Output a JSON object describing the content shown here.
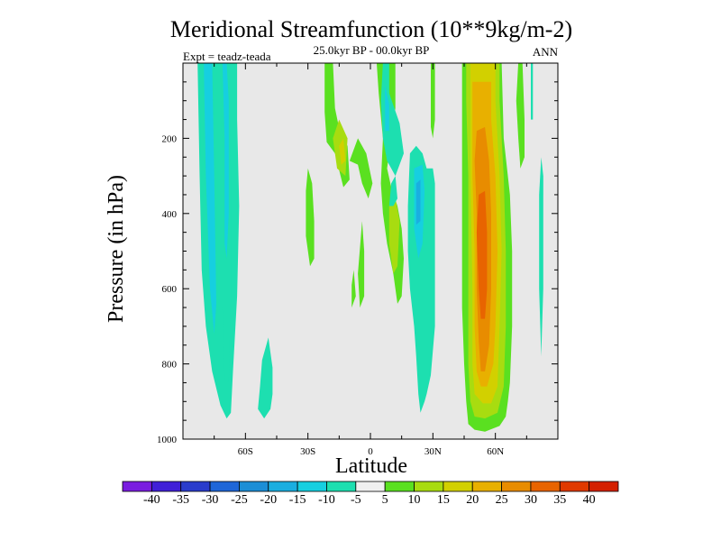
{
  "chart_data": {
    "type": "heatmap",
    "subtype": "filled-contour",
    "title": "Meridional Streamfunction (10**9kg/m-2)",
    "subtitle_center": "25.0kyr BP - 00.0kyr BP",
    "subtitle_left": "Expt = teadz-teada",
    "subtitle_right": "ANN",
    "xlabel": "Latitude",
    "ylabel": "Pressure (in hPa)",
    "xlim": [
      -90,
      90
    ],
    "ylim": [
      1000,
      0
    ],
    "x_ticks": [
      {
        "value": -60,
        "label": "60S"
      },
      {
        "value": -30,
        "label": "30S"
      },
      {
        "value": 0,
        "label": "0"
      },
      {
        "value": 30,
        "label": "30N"
      },
      {
        "value": 60,
        "label": "60N"
      }
    ],
    "y_ticks": [
      {
        "value": 200,
        "label": "200"
      },
      {
        "value": 400,
        "label": "400"
      },
      {
        "value": 600,
        "label": "600"
      },
      {
        "value": 800,
        "label": "800"
      },
      {
        "value": 1000,
        "label": "1000"
      }
    ],
    "colorbar": {
      "levels": [
        "-40",
        "-35",
        "-30",
        "-25",
        "-20",
        "-15",
        "-10",
        "-5",
        "5",
        "10",
        "15",
        "20",
        "25",
        "30",
        "35",
        "40"
      ],
      "colors": [
        "#7a1de0",
        "#4020d8",
        "#2a3ccc",
        "#1e66d8",
        "#1c8ed6",
        "#1aaee0",
        "#16cfe0",
        "#1ddfb0",
        "#f0f0f0",
        "#5ae020",
        "#a8dc10",
        "#d2d000",
        "#e8b000",
        "#e88c00",
        "#e86400",
        "#e03a00",
        "#d42000"
      ]
    },
    "background_color": "#e8e8e8",
    "regions": [
      {
        "color": "#1ddfb0",
        "pts": [
          [
            -83,
            -2
          ],
          [
            -82,
            300
          ],
          [
            -81,
            550
          ],
          [
            -79,
            700
          ],
          [
            -76,
            820
          ],
          [
            -72,
            910
          ],
          [
            -69,
            945
          ],
          [
            -67,
            930
          ],
          [
            -66,
            820
          ],
          [
            -64,
            620
          ],
          [
            -63,
            380
          ],
          [
            -64,
            150
          ],
          [
            -64,
            -2
          ]
        ]
      },
      {
        "color": "#16cfe0",
        "pts": [
          [
            -80,
            -2
          ],
          [
            -79,
            300
          ],
          [
            -77,
            600
          ],
          [
            -75,
            720
          ],
          [
            -74,
            640
          ],
          [
            -75,
            300
          ],
          [
            -76,
            -2
          ]
        ]
      },
      {
        "color": "#1ddfb0",
        "pts": [
          [
            -72,
            -2
          ],
          [
            -71,
            300
          ],
          [
            -71,
            650
          ],
          [
            -70,
            840
          ],
          [
            -68,
            850
          ],
          [
            -67,
            620
          ],
          [
            -67,
            300
          ],
          [
            -68,
            -2
          ]
        ]
      },
      {
        "color": "#16cfe0",
        "pts": [
          [
            -71,
            -2
          ],
          [
            -70,
            200
          ],
          [
            -70,
            480
          ],
          [
            -69,
            520
          ],
          [
            -68,
            400
          ],
          [
            -68,
            100
          ],
          [
            -69,
            -2
          ]
        ]
      },
      {
        "color": "#1ddfb0",
        "pts": [
          [
            -54,
            920
          ],
          [
            -53,
            860
          ],
          [
            -52,
            790
          ],
          [
            -49,
            730
          ],
          [
            -47,
            810
          ],
          [
            -47,
            880
          ],
          [
            -48,
            920
          ],
          [
            -51,
            945
          ]
        ]
      },
      {
        "color": "#5ae020",
        "pts": [
          [
            -30,
            280
          ],
          [
            -28,
            320
          ],
          [
            -27,
            420
          ],
          [
            -27,
            520
          ],
          [
            -29,
            540
          ],
          [
            -31,
            460
          ],
          [
            -31,
            340
          ]
        ]
      },
      {
        "color": "#5ae020",
        "pts": [
          [
            -22,
            -2
          ],
          [
            -18,
            -2
          ],
          [
            -17,
            120
          ],
          [
            -14,
            200
          ],
          [
            -11,
            220
          ],
          [
            -10,
            310
          ],
          [
            -13,
            330
          ],
          [
            -17,
            240
          ],
          [
            -21,
            210
          ],
          [
            -22,
            130
          ]
        ]
      },
      {
        "color": "#a8dc10",
        "pts": [
          [
            -18,
            200
          ],
          [
            -15,
            150
          ],
          [
            -11,
            200
          ],
          [
            -12,
            300
          ],
          [
            -16,
            280
          ]
        ]
      },
      {
        "color": "#d2d000",
        "pts": [
          [
            -15,
            220
          ],
          [
            -13,
            200
          ],
          [
            -12,
            260
          ],
          [
            -14,
            270
          ]
        ]
      },
      {
        "color": "#5ae020",
        "pts": [
          [
            -4,
            420
          ],
          [
            -3,
            500
          ],
          [
            -3,
            620
          ],
          [
            -5,
            650
          ],
          [
            -6,
            560
          ]
        ]
      },
      {
        "color": "#5ae020",
        "pts": [
          [
            -8,
            550
          ],
          [
            -7,
            620
          ],
          [
            -9,
            650
          ],
          [
            -9,
            590
          ]
        ]
      },
      {
        "color": "#5ae020",
        "pts": [
          [
            -10,
            260
          ],
          [
            -6,
            200
          ],
          [
            -2,
            240
          ],
          [
            1,
            320
          ],
          [
            -1,
            360
          ],
          [
            -4,
            320
          ],
          [
            -6,
            270
          ]
        ]
      },
      {
        "color": "#5ae020",
        "pts": [
          [
            3,
            -2
          ],
          [
            12,
            -2
          ],
          [
            12,
            120
          ],
          [
            10,
            200
          ],
          [
            8,
            280
          ],
          [
            10,
            330
          ],
          [
            13,
            380
          ],
          [
            15,
            440
          ],
          [
            16,
            520
          ],
          [
            15,
            620
          ],
          [
            13,
            640
          ],
          [
            11,
            560
          ],
          [
            8,
            480
          ],
          [
            6,
            400
          ],
          [
            5,
            320
          ],
          [
            6,
            200
          ],
          [
            4,
            80
          ]
        ]
      },
      {
        "color": "#1ddfb0",
        "pts": [
          [
            6,
            -2
          ],
          [
            9,
            -2
          ],
          [
            9,
            80
          ],
          [
            14,
            160
          ],
          [
            16,
            240
          ],
          [
            12,
            300
          ],
          [
            8,
            260
          ],
          [
            6,
            200
          ],
          [
            5,
            100
          ]
        ]
      },
      {
        "color": "#16cfe0",
        "pts": [
          [
            7,
            60
          ],
          [
            9,
            110
          ],
          [
            9,
            180
          ],
          [
            7,
            180
          ]
        ]
      },
      {
        "color": "#a8dc10",
        "pts": [
          [
            9,
            380
          ],
          [
            12,
            360
          ],
          [
            14,
            420
          ],
          [
            13,
            540
          ],
          [
            11,
            560
          ],
          [
            9,
            480
          ]
        ]
      },
      {
        "color": "#1ddfb0",
        "pts": [
          [
            9,
            380
          ],
          [
            10,
            320
          ],
          [
            12,
            300
          ],
          [
            13,
            360
          ],
          [
            11,
            380
          ]
        ]
      },
      {
        "color": "#5ae020",
        "pts": [
          [
            29,
            -2
          ],
          [
            31,
            -2
          ],
          [
            31,
            150
          ],
          [
            30,
            200
          ],
          [
            29,
            170
          ]
        ]
      },
      {
        "color": "#1ddfb0",
        "pts": [
          [
            19,
            240
          ],
          [
            22,
            220
          ],
          [
            25,
            240
          ],
          [
            27,
            280
          ],
          [
            30,
            280
          ],
          [
            31,
            320
          ],
          [
            31,
            500
          ],
          [
            31,
            700
          ],
          [
            29,
            830
          ],
          [
            27,
            880
          ],
          [
            26,
            900
          ],
          [
            24,
            930
          ],
          [
            23,
            880
          ],
          [
            22,
            780
          ],
          [
            21,
            700
          ],
          [
            19,
            600
          ],
          [
            18,
            500
          ],
          [
            18,
            380
          ]
        ]
      },
      {
        "color": "#16cfe0",
        "pts": [
          [
            21,
            280
          ],
          [
            25,
            270
          ],
          [
            26,
            340
          ],
          [
            25,
            480
          ],
          [
            23,
            520
          ],
          [
            21,
            440
          ]
        ]
      },
      {
        "color": "#1aaee0",
        "pts": [
          [
            22,
            320
          ],
          [
            24,
            310
          ],
          [
            24,
            420
          ],
          [
            22,
            430
          ]
        ]
      },
      {
        "color": "#5ae020",
        "pts": [
          [
            44,
            -2
          ],
          [
            63,
            -2
          ],
          [
            64,
            200
          ],
          [
            67,
            350
          ],
          [
            68,
            500
          ],
          [
            68,
            700
          ],
          [
            67,
            850
          ],
          [
            66,
            900
          ],
          [
            65,
            940
          ],
          [
            62,
            965
          ],
          [
            55,
            980
          ],
          [
            50,
            975
          ],
          [
            47,
            960
          ],
          [
            46,
            900
          ],
          [
            45,
            800
          ],
          [
            44,
            650
          ],
          [
            44,
            400
          ],
          [
            44,
            150
          ]
        ]
      },
      {
        "color": "#a8dc10",
        "pts": [
          [
            46,
            -2
          ],
          [
            62,
            -2
          ],
          [
            62,
            100
          ],
          [
            64,
            300
          ],
          [
            65,
            500
          ],
          [
            65,
            700
          ],
          [
            64,
            860
          ],
          [
            61,
            930
          ],
          [
            55,
            945
          ],
          [
            50,
            940
          ],
          [
            48,
            900
          ],
          [
            47,
            800
          ],
          [
            47,
            600
          ],
          [
            47,
            300
          ],
          [
            46,
            100
          ]
        ]
      },
      {
        "color": "#d2d000",
        "pts": [
          [
            48,
            -2
          ],
          [
            60,
            -2
          ],
          [
            60,
            100
          ],
          [
            62,
            300
          ],
          [
            63,
            500
          ],
          [
            62,
            700
          ],
          [
            61,
            860
          ],
          [
            58,
            905
          ],
          [
            54,
            905
          ],
          [
            50,
            880
          ],
          [
            49,
            800
          ],
          [
            49,
            600
          ],
          [
            48,
            300
          ]
        ]
      },
      {
        "color": "#e8b000",
        "pts": [
          [
            49,
            50
          ],
          [
            58,
            50
          ],
          [
            58,
            150
          ],
          [
            60,
            300
          ],
          [
            61,
            500
          ],
          [
            60,
            700
          ],
          [
            59,
            800
          ],
          [
            56,
            860
          ],
          [
            53,
            860
          ],
          [
            51,
            820
          ],
          [
            50,
            700
          ],
          [
            50,
            500
          ],
          [
            49,
            300
          ]
        ]
      },
      {
        "color": "#e88c00",
        "pts": [
          [
            51,
            180
          ],
          [
            55,
            170
          ],
          [
            57,
            260
          ],
          [
            58,
            400
          ],
          [
            58,
            600
          ],
          [
            57,
            750
          ],
          [
            55,
            820
          ],
          [
            53,
            820
          ],
          [
            52,
            740
          ],
          [
            51,
            600
          ],
          [
            51,
            400
          ],
          [
            50,
            260
          ]
        ]
      },
      {
        "color": "#e86400",
        "pts": [
          [
            52,
            350
          ],
          [
            55,
            340
          ],
          [
            56,
            450
          ],
          [
            56,
            600
          ],
          [
            55,
            680
          ],
          [
            53,
            680
          ],
          [
            52,
            600
          ],
          [
            51,
            450
          ]
        ]
      },
      {
        "color": "#5ae020",
        "pts": [
          [
            71,
            -2
          ],
          [
            73,
            -2
          ],
          [
            74,
            150
          ],
          [
            74,
            250
          ],
          [
            72,
            280
          ],
          [
            71,
            200
          ],
          [
            70,
            100
          ]
        ]
      },
      {
        "color": "#1ddfb0",
        "pts": [
          [
            77,
            -2
          ],
          [
            78,
            -2
          ],
          [
            78,
            150
          ],
          [
            77,
            150
          ]
        ]
      },
      {
        "color": "#1ddfb0",
        "pts": [
          [
            82,
            250
          ],
          [
            83,
            300
          ],
          [
            83,
            600
          ],
          [
            82,
            780
          ],
          [
            81,
            600
          ],
          [
            81,
            350
          ]
        ]
      }
    ]
  }
}
